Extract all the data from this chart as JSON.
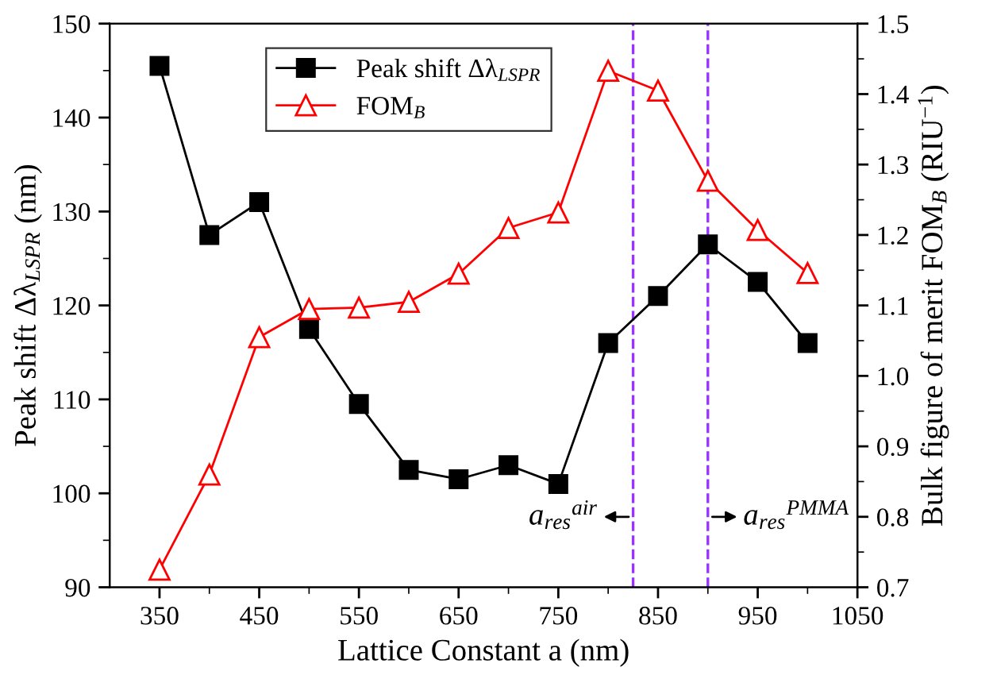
{
  "chart_data": {
    "type": "line",
    "xlabel": "Lattice Constant a (nm)",
    "ylabel": "Peak shift Δλ$_{LSPR}$ (nm)",
    "y2label": "Bulk figure of merit FOM$_{B}$ (RIU$^{−1}$)",
    "x": [
      350,
      400,
      450,
      500,
      550,
      600,
      650,
      700,
      750,
      800,
      850,
      900,
      950,
      1000
    ],
    "series": [
      {
        "name": "Peak shift Δλ$_{LSPR}$",
        "color": "#000000",
        "marker": "square",
        "values": [
          145.5,
          127.5,
          131,
          117.5,
          109.5,
          102.5,
          101.5,
          103,
          101,
          116,
          121,
          126.5,
          122.5,
          116
        ]
      },
      {
        "name": "FOM$_{B}$",
        "color": "#ff0000",
        "marker": "triangle",
        "axis": "y2",
        "values": [
          0.725,
          0.86,
          1.055,
          1.095,
          1.097,
          1.105,
          1.145,
          1.21,
          1.232,
          1.433,
          1.405,
          1.277,
          1.207,
          1.146
        ]
      }
    ],
    "xlim": [
      300,
      1050
    ],
    "xticks": [
      350,
      {
        "value": 400,
        "label": null
      },
      450,
      {
        "value": 500,
        "label": null
      },
      550,
      {
        "value": 600,
        "label": null
      },
      650,
      {
        "value": 700,
        "label": null
      },
      750,
      {
        "value": 800,
        "label": null
      },
      850,
      {
        "value": 900,
        "label": null
      },
      950,
      {
        "value": 1000,
        "label": null
      },
      1050
    ],
    "ylim": [
      90,
      150
    ],
    "yticks": [
      90,
      {
        "value": 95,
        "label": null
      },
      100,
      {
        "value": 105,
        "label": null
      },
      110,
      {
        "value": 115,
        "label": null
      },
      120,
      {
        "value": 125,
        "label": null
      },
      130,
      {
        "value": 135,
        "label": null
      },
      140,
      {
        "value": 145,
        "label": null
      },
      150
    ],
    "y2lim": [
      0.7,
      1.5
    ],
    "y2ticks": [
      {
        "value": 0.7,
        "label": "0.7"
      },
      {
        "value": 0.75,
        "label": null
      },
      {
        "value": 0.8,
        "label": "0.8"
      },
      {
        "value": 0.85,
        "label": null
      },
      {
        "value": 0.9,
        "label": "0.9"
      },
      {
        "value": 0.95,
        "label": null
      },
      {
        "value": 1.0,
        "label": "1.0"
      },
      {
        "value": 1.05,
        "label": null
      },
      {
        "value": 1.1,
        "label": "1.1"
      },
      {
        "value": 1.15,
        "label": null
      },
      {
        "value": 1.2,
        "label": "1.2"
      },
      {
        "value": 1.25,
        "label": null
      },
      {
        "value": 1.3,
        "label": "1.3"
      },
      {
        "value": 1.35,
        "label": null
      },
      {
        "value": 1.4,
        "label": "1.4"
      },
      {
        "value": 1.45,
        "label": null
      },
      {
        "value": 1.5,
        "label": "1.5"
      }
    ],
    "ref_lines": [
      {
        "axis": "x",
        "value": 825,
        "color": "#9933ff",
        "line_style": "dashed"
      },
      {
        "axis": "x",
        "value": 900,
        "color": "#9933ff",
        "line_style": "dashed"
      }
    ],
    "annotations": [
      {
        "text": "a$_{res}$$^{air}$",
        "x": 825,
        "y": 97.5
      },
      {
        "text": "a$_{res}$$^{PMMA}$",
        "x": 900,
        "y": 97.5
      }
    ],
    "legend": "top",
    "grid": false,
    "line_style": "solid"
  }
}
